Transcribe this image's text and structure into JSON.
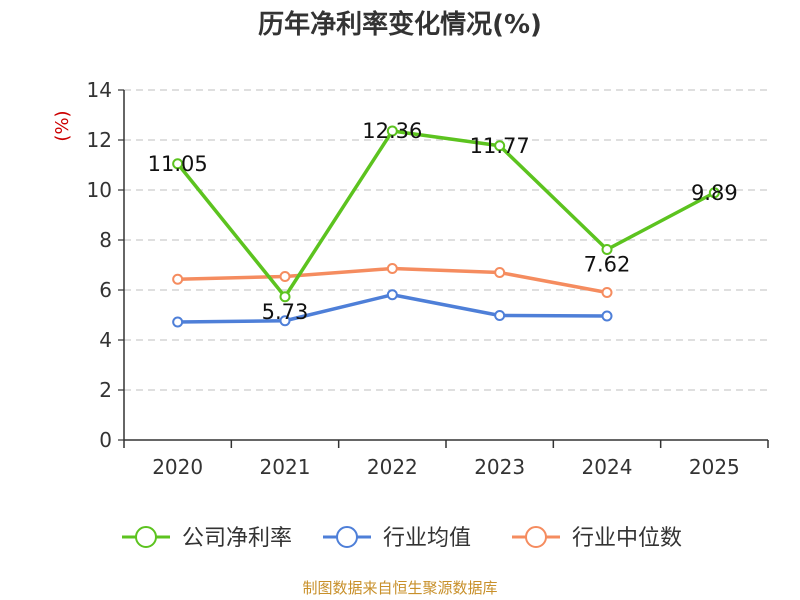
{
  "colors": {
    "company": "#5cc31f",
    "industry_avg": "#4e7fd8",
    "industry_median": "#f58c5f",
    "unit_label": "#cc0000",
    "source": "#c8902a",
    "grid": "#cccccc",
    "axis": "#333333"
  },
  "chart_data": {
    "type": "line",
    "title": "历年净利率变化情况(%)",
    "ylabel": "(%)",
    "xlabel": "",
    "categories": [
      "2020",
      "2021",
      "2022",
      "2023",
      "2024",
      "2025"
    ],
    "ylim": [
      0,
      14
    ],
    "yticks": [
      "0",
      "2",
      "4",
      "6",
      "8",
      "10",
      "12",
      "14"
    ],
    "grid": "horizontal-dashed",
    "legend_position": "bottom",
    "series": [
      {
        "name": "公司净利率",
        "values": [
          11.05,
          5.73,
          12.36,
          11.77,
          7.62,
          9.89
        ],
        "labels": [
          "11.05",
          "5.73",
          "12.36",
          "11.77",
          "7.62",
          "9.89"
        ]
      },
      {
        "name": "行业均值",
        "values": [
          4.72,
          4.77,
          5.81,
          4.98,
          4.96,
          null
        ]
      },
      {
        "name": "行业中位数",
        "values": [
          6.43,
          6.54,
          6.86,
          6.7,
          5.9,
          null
        ]
      }
    ]
  },
  "source_text": "制图数据来自恒生聚源数据库"
}
